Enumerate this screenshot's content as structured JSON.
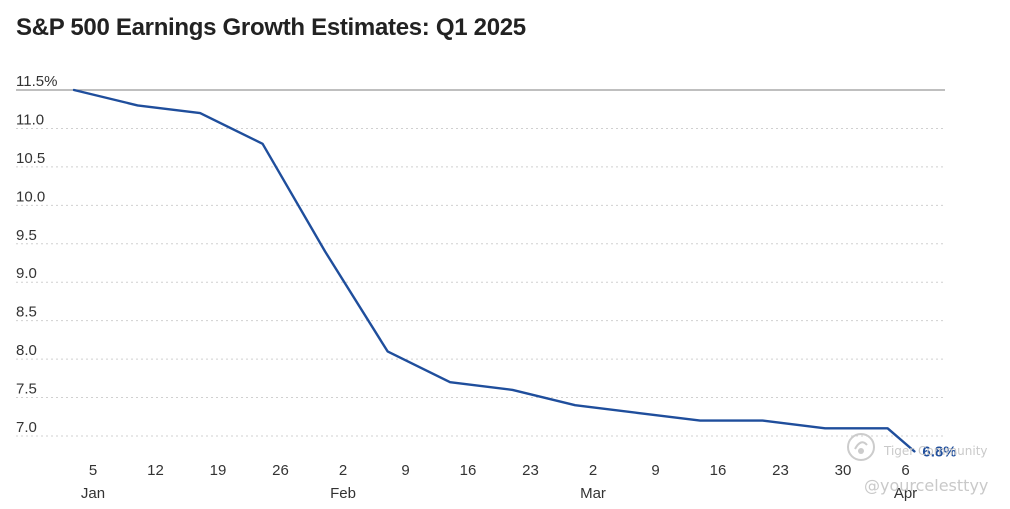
{
  "chart_data": {
    "type": "line",
    "title": "S&P 500 Earnings Growth Estimates: Q1 2025",
    "xlabel": "",
    "ylabel": "",
    "ylim": [
      6.8,
      11.5
    ],
    "y_ticks": [
      {
        "value": 11.5,
        "label": "11.5%"
      },
      {
        "value": 11.0,
        "label": "11.0"
      },
      {
        "value": 10.5,
        "label": "10.5"
      },
      {
        "value": 10.0,
        "label": "10.0"
      },
      {
        "value": 9.5,
        "label": "9.5"
      },
      {
        "value": 9.0,
        "label": "9.0"
      },
      {
        "value": 8.5,
        "label": "8.5"
      },
      {
        "value": 8.0,
        "label": "8.0"
      },
      {
        "value": 7.5,
        "label": "7.5"
      },
      {
        "value": 7.0,
        "label": "7.0"
      }
    ],
    "x_ticks": [
      {
        "day": "5",
        "month": "Jan"
      },
      {
        "day": "12",
        "month": ""
      },
      {
        "day": "19",
        "month": ""
      },
      {
        "day": "26",
        "month": ""
      },
      {
        "day": "2",
        "month": "Feb"
      },
      {
        "day": "9",
        "month": ""
      },
      {
        "day": "16",
        "month": ""
      },
      {
        "day": "23",
        "month": ""
      },
      {
        "day": "2",
        "month": "Mar"
      },
      {
        "day": "9",
        "month": ""
      },
      {
        "day": "16",
        "month": ""
      },
      {
        "day": "23",
        "month": ""
      },
      {
        "day": "30",
        "month": ""
      },
      {
        "day": "6",
        "month": "Apr"
      }
    ],
    "series": [
      {
        "color": "#1f4e9c",
        "points": [
          {
            "x": "2024-12-31",
            "y": 11.5
          },
          {
            "x": "2025-01-10",
            "y": 11.3
          },
          {
            "x": "2025-01-17",
            "y": 11.2
          },
          {
            "x": "2025-01-24",
            "y": 10.8
          },
          {
            "x": "2025-01-31",
            "y": 9.4
          },
          {
            "x": "2025-02-07",
            "y": 8.1
          },
          {
            "x": "2025-02-14",
            "y": 7.7
          },
          {
            "x": "2025-02-21",
            "y": 7.6
          },
          {
            "x": "2025-02-28",
            "y": 7.4
          },
          {
            "x": "2025-03-07",
            "y": 7.3
          },
          {
            "x": "2025-03-14",
            "y": 7.2
          },
          {
            "x": "2025-03-21",
            "y": 7.2
          },
          {
            "x": "2025-03-28",
            "y": 7.1
          },
          {
            "x": "2025-04-04",
            "y": 7.1
          },
          {
            "x": "2025-04-07",
            "y": 6.8
          }
        ]
      }
    ],
    "end_label": "6.8%",
    "grid": "horizontal dotted",
    "legend": "none"
  },
  "watermark": {
    "brand": "Tiger Community",
    "handle": "@yourcelesttyy"
  },
  "colors": {
    "line": "#1f4e9c",
    "grid": "#d0d0d0",
    "axis": "#999999",
    "text": "#333333"
  }
}
